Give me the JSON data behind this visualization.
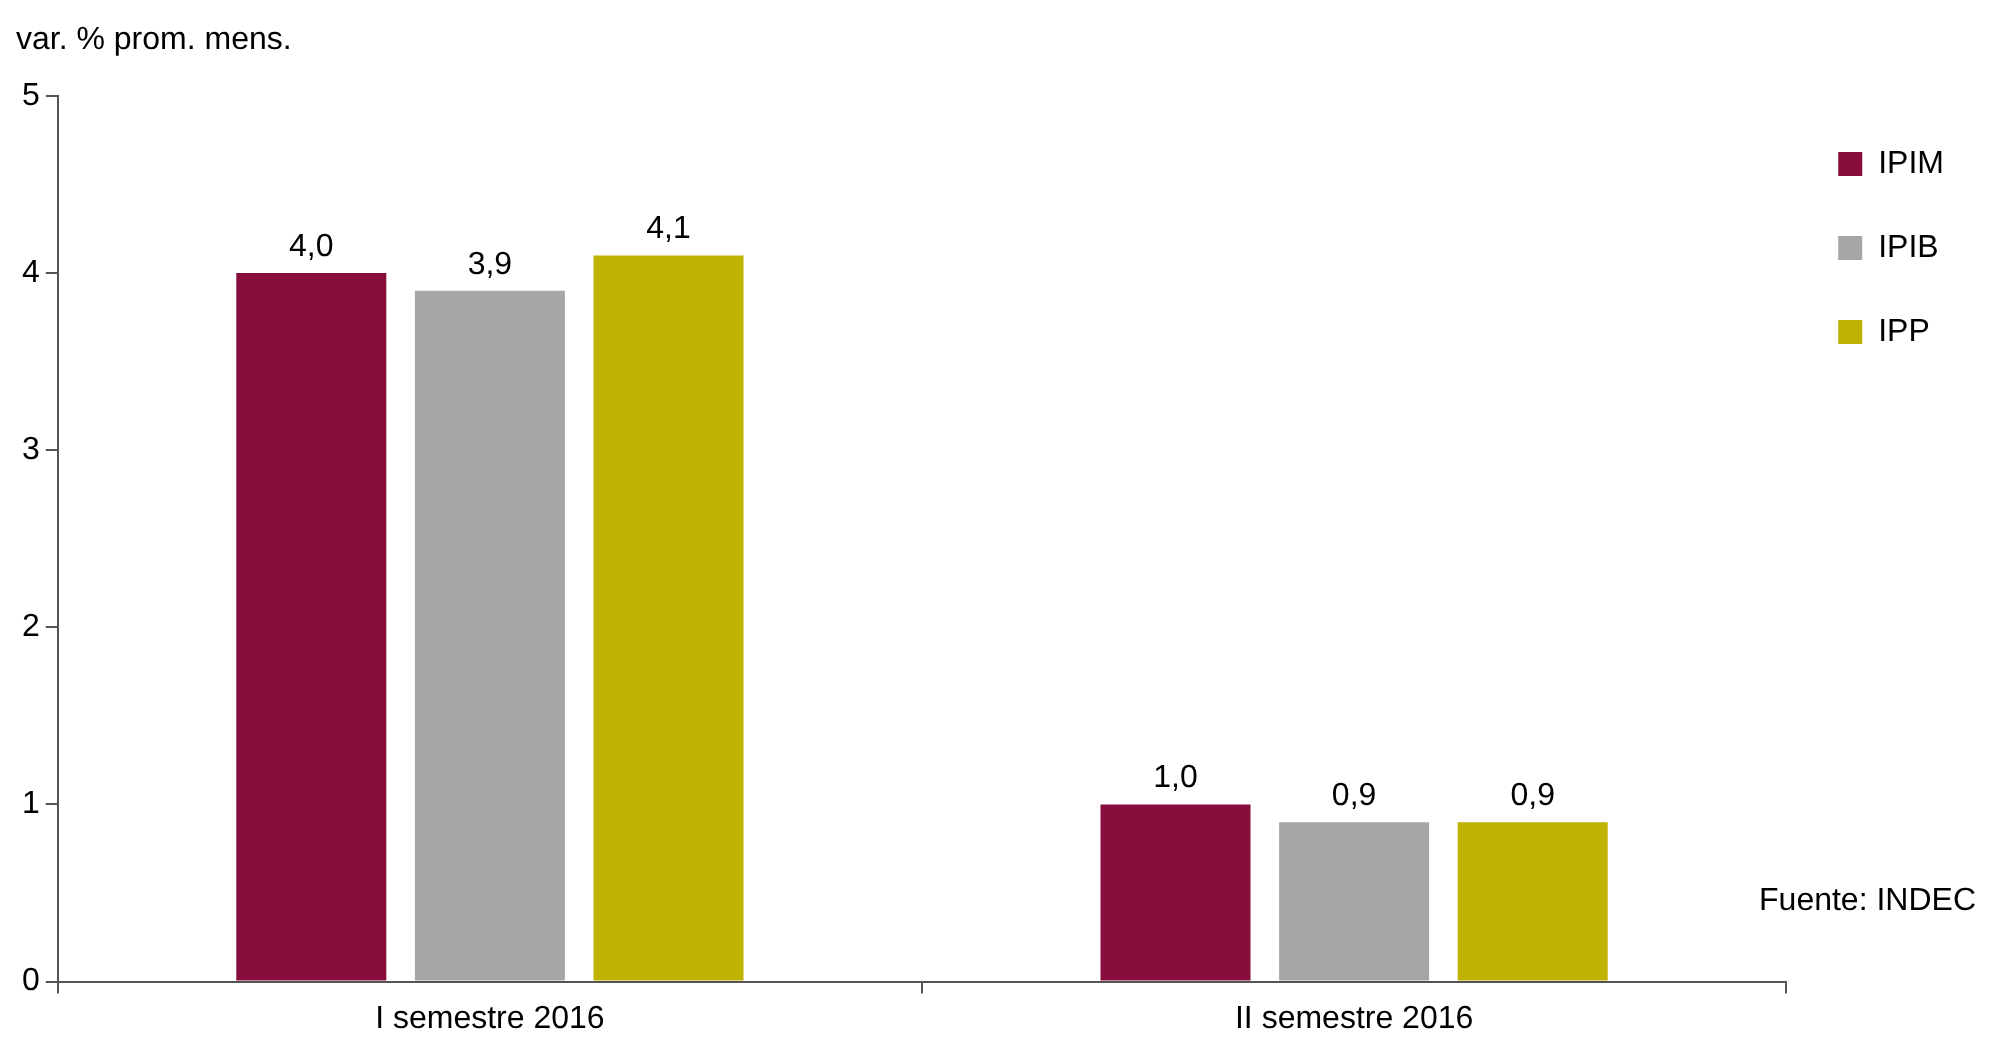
{
  "chart_data": {
    "type": "bar",
    "ylabel": "var. % prom. mens.",
    "categories": [
      "I semestre 2016",
      "II semestre 2016"
    ],
    "series": [
      {
        "name": "IPIM",
        "color": "#870e3c",
        "values": [
          4.0,
          1.0
        ],
        "value_labels": [
          "4,0",
          "1,0"
        ]
      },
      {
        "name": "IPIB",
        "color": "#a6a6a6",
        "values": [
          3.9,
          0.9
        ],
        "value_labels": [
          "3,9",
          "0,9"
        ]
      },
      {
        "name": "IPP",
        "color": "#bfb200",
        "values": [
          4.1,
          0.9
        ],
        "value_labels": [
          "4,1",
          "0,9"
        ]
      }
    ],
    "ylim": [
      0,
      5
    ],
    "yticks": [
      0,
      1,
      2,
      3,
      4,
      5
    ],
    "grid": false,
    "legend": "top right",
    "annotations": [
      "Fuente: INDEC"
    ]
  }
}
